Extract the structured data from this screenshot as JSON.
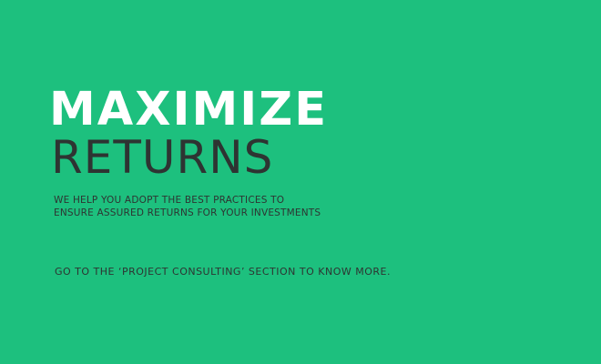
{
  "banner": {
    "headline_line1": "MAXIMIZE",
    "headline_line2": "RETURNS",
    "subtext_line1": "WE HELP YOU ADOPT THE BEST PRACTICES TO",
    "subtext_line2": "ENSURE ASSURED RETURNS FOR YOUR INVESTMENTS",
    "cta": "GO TO THE ‘PROJECT CONSULTING’ SECTION TO KNOW MORE."
  },
  "colors": {
    "background": "#1dc07e",
    "headline_primary": "#ffffff",
    "text_dark": "#2e3432"
  }
}
